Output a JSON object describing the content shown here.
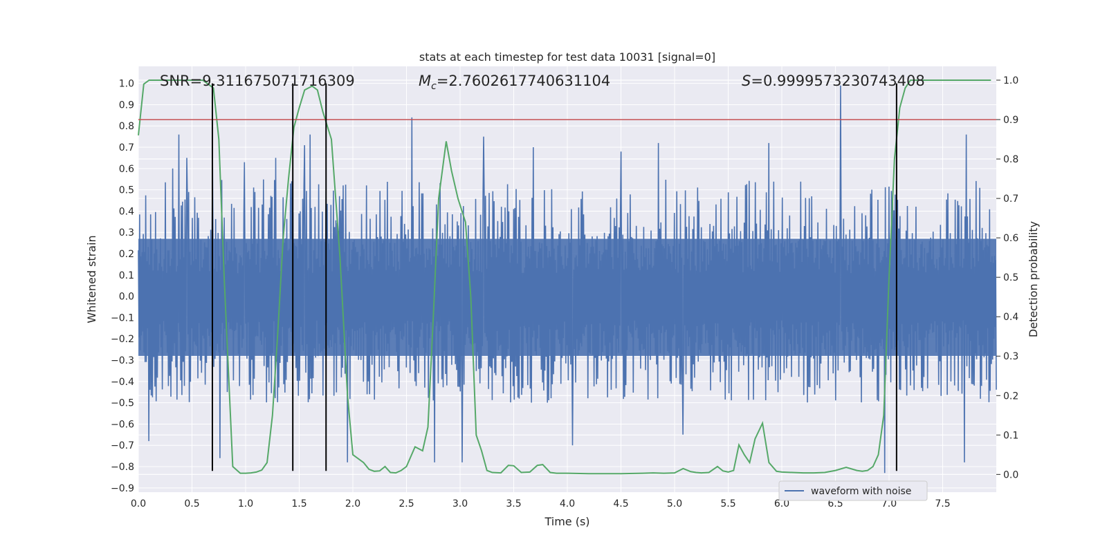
{
  "chart_data": {
    "type": "line",
    "title": "stats at each timestep for test data 10031 [signal=0]",
    "xlabel": "Time (s)",
    "ylabel": "Whitened strain",
    "y2label": "Detection probability",
    "xlim": [
      0.0,
      8.0
    ],
    "ylim": [
      -0.92,
      1.08
    ],
    "y2lim": [
      -0.045,
      1.035
    ],
    "xticks": [
      0.0,
      0.5,
      1.0,
      1.5,
      2.0,
      2.5,
      3.0,
      3.5,
      4.0,
      4.5,
      5.0,
      5.5,
      6.0,
      6.5,
      7.0,
      7.5
    ],
    "xtick_labels": [
      "0.0",
      "0.5",
      "1.0",
      "1.5",
      "2.0",
      "2.5",
      "3.0",
      "3.5",
      "4.0",
      "4.5",
      "5.0",
      "5.5",
      "6.0",
      "6.5",
      "7.0",
      "7.5"
    ],
    "yticks": [
      -0.9,
      -0.8,
      -0.7,
      -0.6,
      -0.5,
      -0.4,
      -0.3,
      -0.2,
      -0.1,
      0.0,
      0.1,
      0.2,
      0.3,
      0.4,
      0.5,
      0.6,
      0.7,
      0.8,
      0.9,
      1.0
    ],
    "ytick_labels": [
      "−0.9",
      "−0.8",
      "−0.7",
      "−0.6",
      "−0.5",
      "−0.4",
      "−0.3",
      "−0.2",
      "−0.1",
      "0.0",
      "0.1",
      "0.2",
      "0.3",
      "0.4",
      "0.5",
      "0.6",
      "0.7",
      "0.8",
      "0.9",
      "1.0"
    ],
    "y2ticks": [
      0.0,
      0.1,
      0.2,
      0.3,
      0.4,
      0.5,
      0.6,
      0.7,
      0.8,
      0.9,
      1.0
    ],
    "y2tick_labels": [
      "0.0",
      "0.1",
      "0.2",
      "0.3",
      "0.4",
      "0.5",
      "0.6",
      "0.7",
      "0.8",
      "0.9",
      "1.0"
    ],
    "grid": true,
    "legend": {
      "placement": "lower-right",
      "entries": [
        "waveform with noise"
      ]
    },
    "annotations": {
      "snr": "SNR=9.311675071716309",
      "mc_symbol": "M",
      "mc_sub": "c",
      "mc_value": "=2.7602617740631104",
      "s_symbol": "S",
      "s_value": "=0.9999573230743408"
    },
    "threshold": {
      "axis": "y2",
      "value": 0.9
    },
    "vlines": [
      0.69,
      1.44,
      1.75,
      7.07
    ],
    "vline_range": [
      -0.82,
      1.0
    ],
    "series": [
      {
        "name": "waveform with noise",
        "axis": "y",
        "style": "noise",
        "x_range": [
          0.0,
          8.0
        ],
        "samples": 1400,
        "envelope_core": [
          -0.28,
          0.27
        ],
        "typical_peak": [
          -0.5,
          0.55
        ],
        "spikes": [
          {
            "x": 0.1,
            "y": -0.68
          },
          {
            "x": 0.32,
            "y": 0.6
          },
          {
            "x": 0.38,
            "y": 0.76
          },
          {
            "x": 0.45,
            "y": 0.65
          },
          {
            "x": 0.69,
            "y": 0.63
          },
          {
            "x": 0.76,
            "y": -0.76
          },
          {
            "x": 0.99,
            "y": 0.63
          },
          {
            "x": 1.28,
            "y": 0.65
          },
          {
            "x": 1.55,
            "y": 0.71
          },
          {
            "x": 1.6,
            "y": 0.76
          },
          {
            "x": 1.95,
            "y": -0.78
          },
          {
            "x": 2.55,
            "y": 0.84
          },
          {
            "x": 2.76,
            "y": -0.78
          },
          {
            "x": 3.02,
            "y": -0.78
          },
          {
            "x": 3.22,
            "y": 0.75
          },
          {
            "x": 3.68,
            "y": 0.7
          },
          {
            "x": 4.05,
            "y": -0.7
          },
          {
            "x": 4.5,
            "y": 0.68
          },
          {
            "x": 4.85,
            "y": 0.72
          },
          {
            "x": 5.08,
            "y": -0.65
          },
          {
            "x": 5.88,
            "y": 0.72
          },
          {
            "x": 6.55,
            "y": 0.99
          },
          {
            "x": 6.96,
            "y": -0.83
          },
          {
            "x": 7.7,
            "y": -0.78
          },
          {
            "x": 7.72,
            "y": 0.76
          }
        ]
      },
      {
        "name": "",
        "axis": "y2",
        "style": "line",
        "x": [
          0.0,
          0.05,
          0.1,
          0.2,
          0.3,
          0.4,
          0.5,
          0.6,
          0.65,
          0.7,
          0.75,
          0.8,
          0.88,
          0.95,
          1.0,
          1.05,
          1.1,
          1.15,
          1.2,
          1.25,
          1.3,
          1.35,
          1.4,
          1.45,
          1.5,
          1.55,
          1.62,
          1.67,
          1.72,
          1.8,
          1.88,
          1.95,
          2.0,
          2.1,
          2.15,
          2.2,
          2.25,
          2.3,
          2.35,
          2.4,
          2.45,
          2.5,
          2.58,
          2.65,
          2.7,
          2.75,
          2.8,
          2.87,
          2.92,
          2.98,
          3.05,
          3.1,
          3.15,
          3.2,
          3.25,
          3.3,
          3.38,
          3.45,
          3.5,
          3.57,
          3.65,
          3.72,
          3.77,
          3.84,
          3.9,
          4.0,
          4.2,
          4.5,
          4.7,
          4.8,
          4.9,
          5.0,
          5.08,
          5.15,
          5.2,
          5.25,
          5.32,
          5.4,
          5.45,
          5.5,
          5.55,
          5.6,
          5.65,
          5.7,
          5.75,
          5.82,
          5.88,
          5.95,
          6.0,
          6.1,
          6.2,
          6.3,
          6.4,
          6.5,
          6.6,
          6.7,
          6.75,
          6.8,
          6.85,
          6.9,
          6.95,
          7.0,
          7.05,
          7.1,
          7.15,
          7.2,
          7.25,
          7.3,
          7.4,
          7.5,
          7.6,
          7.7,
          7.8,
          7.95
        ],
        "y": [
          0.86,
          0.99,
          1.0,
          1.0,
          1.0,
          1.0,
          1.0,
          1.0,
          0.99,
          0.98,
          0.85,
          0.5,
          0.02,
          0.003,
          0.003,
          0.004,
          0.006,
          0.011,
          0.03,
          0.15,
          0.36,
          0.6,
          0.75,
          0.88,
          0.93,
          0.975,
          0.985,
          0.975,
          0.92,
          0.85,
          0.55,
          0.2,
          0.05,
          0.03,
          0.013,
          0.008,
          0.009,
          0.02,
          0.005,
          0.004,
          0.01,
          0.02,
          0.07,
          0.06,
          0.12,
          0.4,
          0.7,
          0.845,
          0.77,
          0.7,
          0.64,
          0.45,
          0.1,
          0.06,
          0.01,
          0.005,
          0.004,
          0.023,
          0.022,
          0.005,
          0.006,
          0.023,
          0.025,
          0.005,
          0.003,
          0.003,
          0.002,
          0.002,
          0.003,
          0.004,
          0.003,
          0.004,
          0.015,
          0.007,
          0.005,
          0.004,
          0.005,
          0.02,
          0.009,
          0.006,
          0.01,
          0.075,
          0.05,
          0.03,
          0.09,
          0.13,
          0.03,
          0.008,
          0.006,
          0.005,
          0.004,
          0.004,
          0.005,
          0.01,
          0.018,
          0.01,
          0.008,
          0.01,
          0.02,
          0.05,
          0.15,
          0.5,
          0.8,
          0.93,
          0.98,
          1.0,
          1.0,
          1.0,
          1.0,
          1.0,
          1.0,
          1.0,
          1.0,
          1.0
        ]
      }
    ]
  },
  "colors": {
    "background": "#eaeaf2",
    "grid": "#ffffff",
    "waveform": "#4c72b0",
    "probability": "#55a868",
    "threshold": "#c44e52",
    "vline": "#000000",
    "text": "#262626"
  }
}
